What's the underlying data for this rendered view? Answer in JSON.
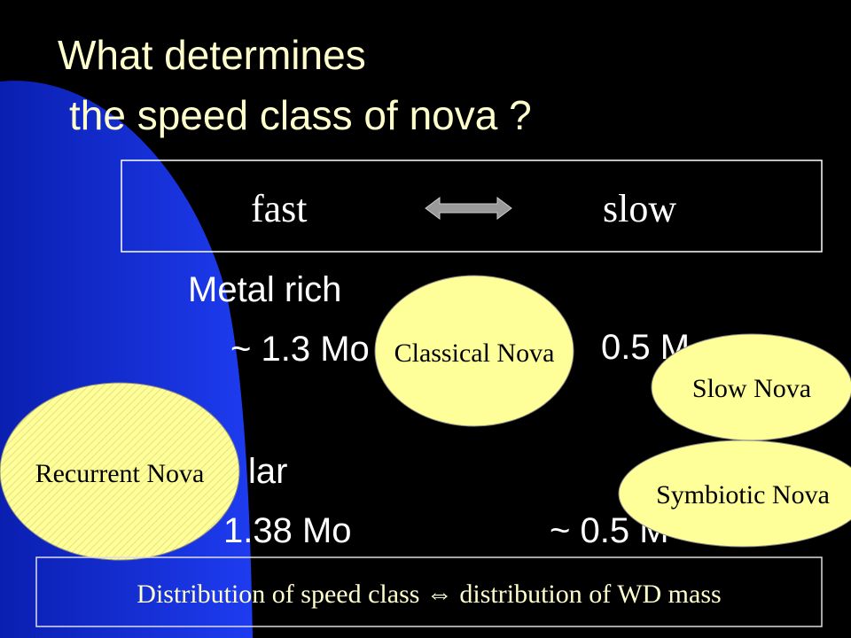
{
  "title": {
    "line1": "What determines",
    "line2": "the speed class of nova ?"
  },
  "speed_box": {
    "left": "fast",
    "right": "slow"
  },
  "body": {
    "metal_rich": "Metal rich",
    "metal_rich_mass_fast": "~ 1.3 Mo",
    "metal_rich_mass_slow": "0.5 M",
    "solar": "lar",
    "solar_mass_fast": "1.38 Mo",
    "solar_mass_slow": "~  0.5 M"
  },
  "ellipses": {
    "classical": "Classical Nova",
    "slow": "Slow  Nova",
    "recurrent": "Recurrent Nova",
    "symbiotic": "Symbiotic Nova"
  },
  "footer": "Distribution of speed class ⇔ distribution of  WD mass"
}
